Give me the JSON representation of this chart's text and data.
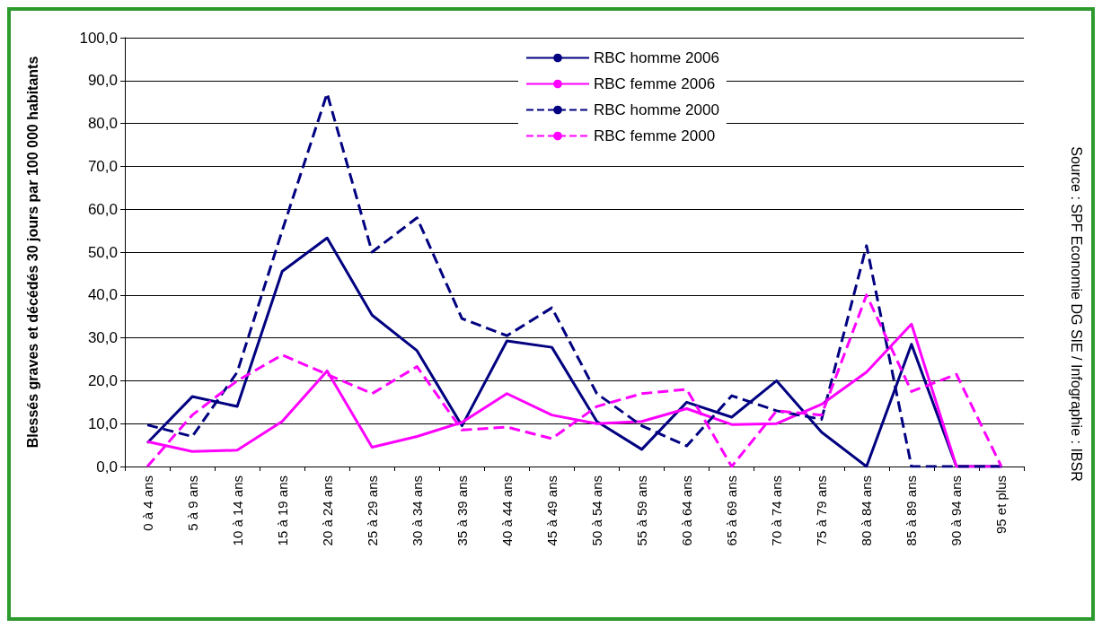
{
  "chart_data": {
    "type": "line",
    "ylabel": "Blessés graves et décédés 30 jours par 100 000 habitants",
    "annotations": [
      "Source : SPF Economie DG SIE / Infographie : IBSR"
    ],
    "categories": [
      "0 à 4 ans",
      "5 à 9 ans",
      "10 à 14 ans",
      "15 à 19 ans",
      "20 à 24 ans",
      "25 à 29 ans",
      "30 à 34 ans",
      "35 à 39 ans",
      "40 à 44 ans",
      "45 à 49 ans",
      "50 à 54 ans",
      "55 à 59 ans",
      "60 à 64 ans",
      "65 à 69 ans",
      "70 à 74 ans",
      "75 à 79 ans",
      "80 à 84 ans",
      "85 à 89 ans",
      "90 à 94 ans",
      "95 et plus"
    ],
    "series": [
      {
        "name": "RBC homme 2006",
        "color": "#000080",
        "line_style": "solid",
        "values": [
          5.5,
          16.3,
          14,
          45.5,
          53.3,
          35.3,
          27,
          9.5,
          29.3,
          27.8,
          10.5,
          4,
          15,
          11.5,
          20,
          8,
          0,
          28.5,
          0,
          0
        ]
      },
      {
        "name": "RBC femme 2006",
        "color": "#ff00ff",
        "line_style": "solid",
        "values": [
          5.8,
          3.5,
          3.8,
          10.5,
          22.3,
          4.5,
          7,
          10.3,
          17,
          12,
          10,
          10.5,
          13.5,
          9.8,
          10,
          14.5,
          22,
          33.2,
          0,
          0
        ]
      },
      {
        "name": "RBC homme 2000",
        "color": "#000080",
        "line_style": "dashed",
        "values": [
          9.7,
          7,
          22,
          55,
          87,
          50,
          58,
          34.5,
          30.5,
          37,
          17,
          9.5,
          4.8,
          16.5,
          13,
          11,
          51.5,
          0,
          0,
          0
        ]
      },
      {
        "name": "RBC femme 2000",
        "color": "#ff00ff",
        "line_style": "dashed",
        "values": [
          0,
          12,
          20,
          26,
          21.5,
          17,
          23.3,
          8.5,
          9.2,
          6.5,
          14,
          17,
          18,
          0,
          13,
          12,
          40,
          17.5,
          21.5,
          0
        ]
      }
    ],
    "ylim": [
      0,
      100
    ],
    "yticks": [
      {
        "value": 0,
        "label": "0,0"
      },
      {
        "value": 10,
        "label": "10,0"
      },
      {
        "value": 20,
        "label": "20,0"
      },
      {
        "value": 30,
        "label": "30,0"
      },
      {
        "value": 40,
        "label": "40,0"
      },
      {
        "value": 50,
        "label": "50,0"
      },
      {
        "value": 60,
        "label": "60,0"
      },
      {
        "value": 70,
        "label": "70,0"
      },
      {
        "value": 80,
        "label": "80,0"
      },
      {
        "value": 90,
        "label": "90,0"
      },
      {
        "value": 100,
        "label": "100,0"
      }
    ],
    "grid": "y",
    "legend": "top",
    "marker": "none"
  }
}
